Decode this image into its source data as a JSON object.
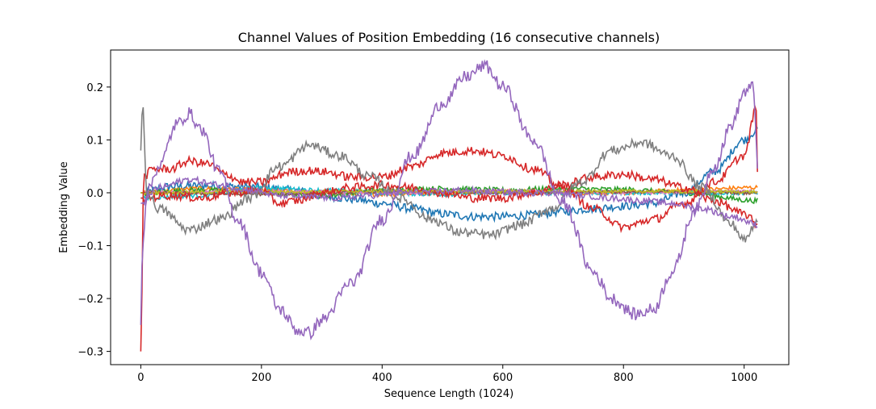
{
  "chart_data": {
    "type": "line",
    "title": "Channel Values of Position Embedding (16 consecutive channels)",
    "xlabel": "Sequence Length (1024)",
    "ylabel": "Embedding Value",
    "xlim": [
      -50,
      1074
    ],
    "ylim": [
      -0.325,
      0.27
    ],
    "xticks": [
      0,
      200,
      400,
      600,
      800,
      1000
    ],
    "xtick_labels": [
      "0",
      "200",
      "400",
      "600",
      "800",
      "1000"
    ],
    "yticks": [
      -0.3,
      -0.2,
      -0.1,
      0.0,
      0.1,
      0.2
    ],
    "ytick_labels": [
      "−0.3",
      "−0.2",
      "−0.1",
      "0.0",
      "0.1",
      "0.2"
    ],
    "grid": false,
    "colors": [
      "#1f77b4",
      "#ff7f0e",
      "#2ca02c",
      "#d62728",
      "#9467bd",
      "#8c564b",
      "#e377c2",
      "#7f7f7f",
      "#bcbd22",
      "#17becf"
    ],
    "series": [
      {
        "color": "#1f77b4",
        "x": [
          0,
          50,
          100,
          150,
          200,
          250,
          300,
          350,
          400,
          450,
          500,
          550,
          600,
          650,
          700,
          750,
          800,
          850,
          900,
          950,
          1000,
          1023
        ],
        "values": [
          0.0,
          0.012,
          0.013,
          0.012,
          0.01,
          0.005,
          -0.005,
          -0.012,
          -0.02,
          -0.03,
          -0.04,
          -0.045,
          -0.045,
          -0.042,
          -0.035,
          -0.03,
          -0.025,
          -0.02,
          0.0,
          0.04,
          0.1,
          0.12
        ],
        "noise": 0.008
      },
      {
        "color": "#ff7f0e",
        "x": [
          0,
          100,
          200,
          300,
          400,
          500,
          600,
          700,
          800,
          900,
          1023
        ],
        "values": [
          0.0,
          0.008,
          0.005,
          0.0,
          -0.003,
          0.0,
          0.003,
          0.0,
          0.0,
          0.005,
          0.01
        ],
        "noise": 0.004
      },
      {
        "color": "#2ca02c",
        "x": [
          0,
          100,
          200,
          300,
          400,
          500,
          600,
          700,
          800,
          900,
          1023
        ],
        "values": [
          0.0,
          0.005,
          0.0,
          -0.005,
          0.005,
          0.008,
          0.005,
          0.008,
          0.006,
          0.0,
          -0.015
        ],
        "noise": 0.005
      },
      {
        "color": "#17becf",
        "x": [
          0,
          100,
          200,
          300,
          400,
          500,
          600,
          700,
          800,
          900,
          1023
        ],
        "values": [
          -0.01,
          -0.005,
          0.01,
          0.005,
          0.0,
          -0.003,
          0.0,
          0.0,
          0.0,
          0.0,
          0.0
        ],
        "noise": 0.004
      },
      {
        "color": "#e377c2",
        "x": [
          0,
          200,
          400,
          600,
          800,
          1023
        ],
        "values": [
          0.0,
          0.003,
          0.0,
          0.003,
          0.0,
          0.003
        ],
        "noise": 0.003
      },
      {
        "color": "#8c564b",
        "x": [
          0,
          200,
          400,
          600,
          800,
          1023
        ],
        "values": [
          0.0,
          -0.003,
          0.002,
          0.0,
          0.002,
          0.0
        ],
        "noise": 0.003
      },
      {
        "color": "#bcbd22",
        "x": [
          0,
          200,
          400,
          600,
          800,
          1023
        ],
        "values": [
          0.0,
          0.002,
          0.003,
          0.002,
          0.003,
          0.002
        ],
        "noise": 0.003
      },
      {
        "color": "#d62728",
        "x": [
          0,
          5,
          20,
          50,
          80,
          110,
          140,
          170,
          200,
          250,
          280,
          300,
          350,
          400,
          450,
          500,
          550,
          600,
          650,
          700,
          750,
          800,
          850,
          900,
          950,
          1000,
          1020,
          1023
        ],
        "values": [
          -0.3,
          0.03,
          0.045,
          0.045,
          0.06,
          0.055,
          0.035,
          0.02,
          0.02,
          0.04,
          0.042,
          0.04,
          0.03,
          0.03,
          0.05,
          0.075,
          0.08,
          0.07,
          0.045,
          0.01,
          -0.03,
          -0.065,
          -0.05,
          -0.02,
          0.02,
          0.07,
          0.16,
          -0.01
        ],
        "noise": 0.008
      },
      {
        "color": "#d62728",
        "x": [
          0,
          50,
          100,
          150,
          200,
          230,
          260,
          300,
          350,
          400,
          450,
          500,
          550,
          600,
          650,
          700,
          750,
          800,
          850,
          900,
          950,
          1000,
          1023
        ],
        "values": [
          -0.01,
          -0.005,
          -0.01,
          0.0,
          0.005,
          -0.02,
          -0.015,
          0.0,
          0.01,
          0.015,
          0.01,
          0.0,
          -0.01,
          -0.01,
          0.0,
          0.015,
          0.03,
          0.035,
          0.025,
          0.01,
          -0.015,
          -0.04,
          -0.06
        ],
        "noise": 0.008
      },
      {
        "color": "#7f7f7f",
        "x": [
          0,
          3,
          10,
          30,
          80,
          130,
          180,
          230,
          280,
          330,
          380,
          430,
          480,
          530,
          580,
          630,
          680,
          730,
          780,
          830,
          880,
          930,
          980,
          1000,
          1023
        ],
        "values": [
          0.08,
          0.17,
          0.0,
          -0.03,
          -0.07,
          -0.05,
          -0.01,
          0.05,
          0.09,
          0.07,
          0.03,
          -0.01,
          -0.05,
          -0.075,
          -0.08,
          -0.06,
          -0.03,
          0.02,
          0.08,
          0.095,
          0.07,
          0.01,
          -0.06,
          -0.09,
          -0.05
        ],
        "noise": 0.009
      },
      {
        "color": "#9467bd",
        "x": [
          0,
          3,
          10,
          30,
          60,
          80,
          100,
          130,
          160,
          200,
          230,
          260,
          280,
          300,
          350,
          400,
          450,
          500,
          540,
          570,
          600,
          650,
          700,
          750,
          780,
          820,
          850,
          880,
          920,
          950,
          980,
          1000,
          1015,
          1023
        ],
        "values": [
          -0.25,
          -0.1,
          0.0,
          0.05,
          0.13,
          0.15,
          0.12,
          0.04,
          -0.05,
          -0.15,
          -0.22,
          -0.26,
          -0.265,
          -0.24,
          -0.17,
          -0.05,
          0.07,
          0.17,
          0.22,
          0.24,
          0.2,
          0.1,
          -0.02,
          -0.15,
          -0.2,
          -0.23,
          -0.22,
          -0.15,
          -0.03,
          0.05,
          0.13,
          0.19,
          0.2,
          0.05
        ],
        "noise": 0.012
      },
      {
        "color": "#9467bd",
        "x": [
          0,
          30,
          80,
          130,
          180,
          230,
          280,
          330,
          380,
          430,
          480,
          530,
          580,
          630,
          680,
          730,
          780,
          830,
          880,
          930,
          980,
          1023
        ],
        "values": [
          -0.02,
          0.01,
          0.025,
          0.015,
          0.005,
          -0.005,
          -0.008,
          -0.01,
          -0.005,
          0.0,
          0.002,
          0.005,
          0.002,
          0.0,
          0.0,
          -0.005,
          -0.01,
          -0.015,
          -0.02,
          -0.03,
          -0.045,
          -0.06
        ],
        "noise": 0.006
      }
    ]
  }
}
